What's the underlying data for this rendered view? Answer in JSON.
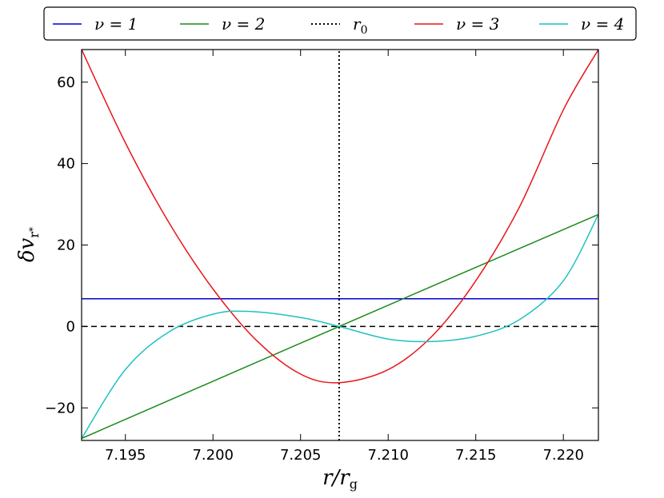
{
  "chart_data": {
    "type": "line",
    "xlabel": "r/r_g",
    "ylabel": "δv_{r*}",
    "xlim": [
      7.1925,
      7.222
    ],
    "ylim": [
      -28,
      68
    ],
    "xticks": [
      7.195,
      7.2,
      7.205,
      7.21,
      7.215,
      7.22
    ],
    "xtick_labels": [
      "7.195",
      "7.200",
      "7.205",
      "7.210",
      "7.215",
      "7.220"
    ],
    "yticks": [
      -20,
      0,
      20,
      40,
      60
    ],
    "ytick_labels": [
      "−20",
      "0",
      "20",
      "40",
      "60"
    ],
    "grid": false,
    "legend_position": "top (outside, single row)",
    "reference_lines": [
      {
        "type": "horizontal",
        "y": 0,
        "style": "dashed",
        "color": "#000000"
      }
    ],
    "series": [
      {
        "name": "ν = 1",
        "color": "#0000cc",
        "style": "solid",
        "x": [
          7.1925,
          7.222
        ],
        "y": [
          6.8,
          6.8
        ]
      },
      {
        "name": "ν = 2",
        "color": "#1a8a1a",
        "style": "solid",
        "x": [
          7.1925,
          7.2072,
          7.222
        ],
        "y": [
          -27.5,
          0,
          27.5
        ]
      },
      {
        "name": "r_0",
        "color": "#000000",
        "style": "dotted",
        "vertical": true,
        "x": [
          7.2072,
          7.2072
        ],
        "y": [
          -28,
          68
        ]
      },
      {
        "name": "ν = 3",
        "color": "#e8161b",
        "style": "solid",
        "x": [
          7.1925,
          7.195,
          7.1975,
          7.2,
          7.2025,
          7.205,
          7.2072,
          7.21,
          7.2125,
          7.215,
          7.2175,
          7.22,
          7.222
        ],
        "y": [
          68,
          45.1,
          25.4,
          9.2,
          -3.5,
          -11.7,
          -13.8,
          -10.6,
          -2.4,
          11.2,
          29.4,
          53.2,
          68
        ]
      },
      {
        "name": "ν = 4",
        "color": "#1fc1c1",
        "style": "solid",
        "x": [
          7.1925,
          7.195,
          7.1975,
          7.2,
          7.202,
          7.205,
          7.2072,
          7.21,
          7.2125,
          7.215,
          7.2175,
          7.22,
          7.222
        ],
        "y": [
          -27.5,
          -10.6,
          -1.3,
          3.0,
          3.7,
          2.2,
          0,
          -3.1,
          -3.7,
          -2.4,
          1.7,
          11.2,
          27.5
        ]
      }
    ]
  }
}
